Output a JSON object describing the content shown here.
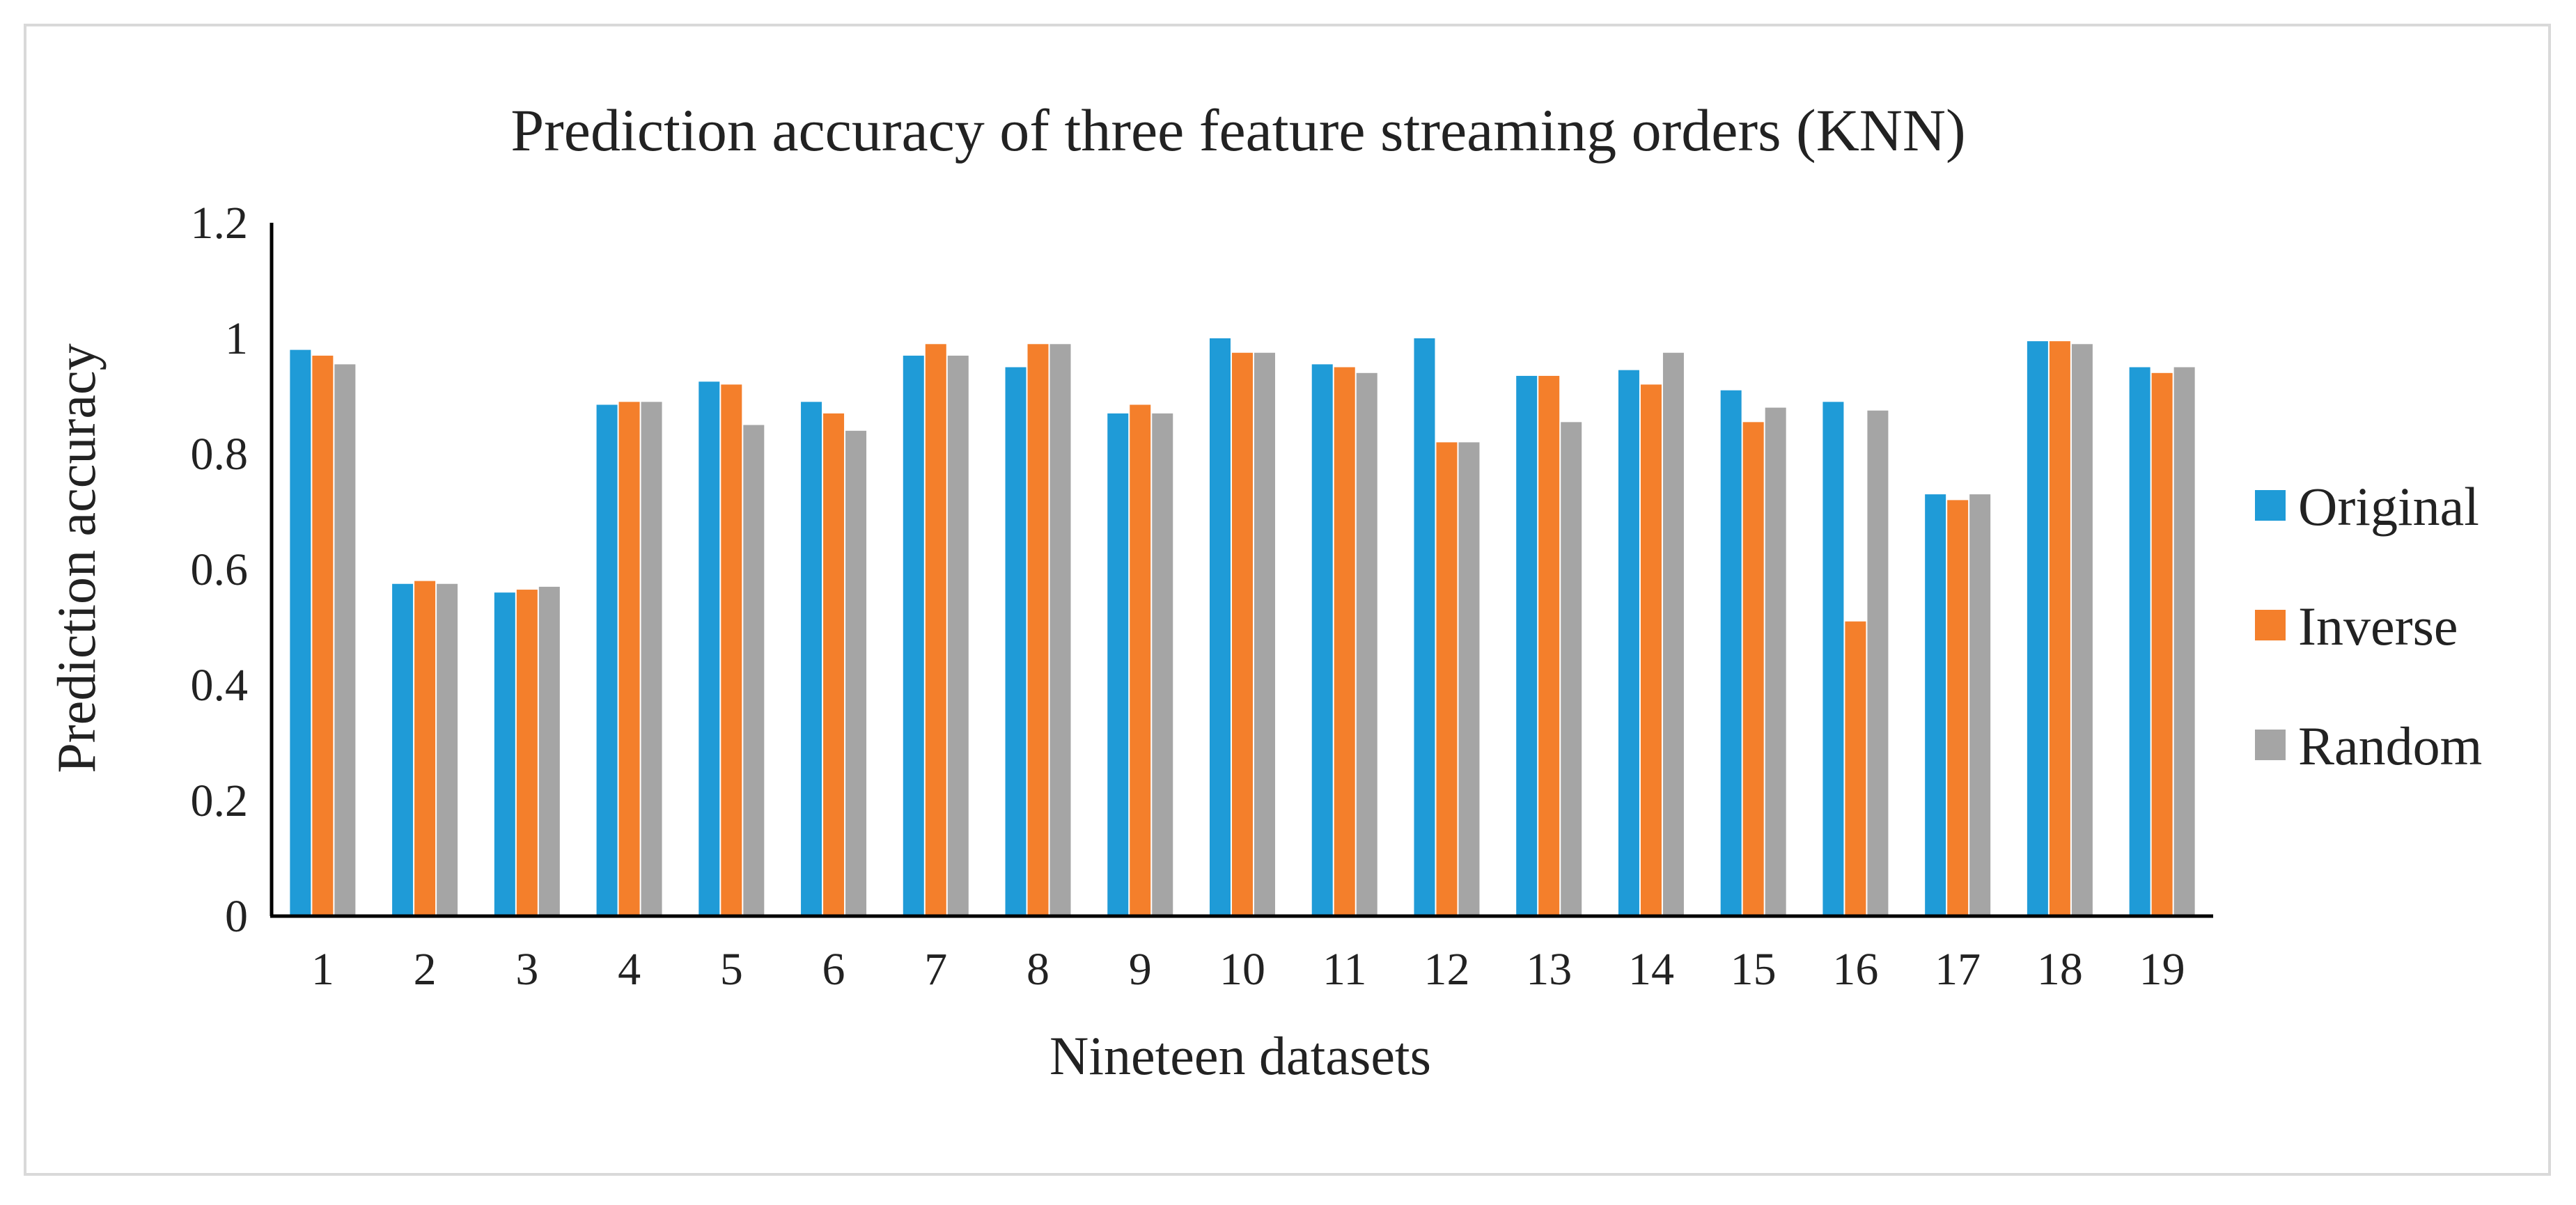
{
  "chart_data": {
    "type": "bar",
    "title": "Prediction accuracy of three feature streaming orders (KNN)",
    "xlabel": "Nineteen datasets",
    "ylabel": "Prediction accuracy",
    "ylim": [
      0,
      1.2
    ],
    "yticks": [
      "0",
      "0.2",
      "0.4",
      "0.6",
      "0.8",
      "1",
      "1.2"
    ],
    "ytick_values": [
      0,
      0.2,
      0.4,
      0.6,
      0.8,
      1.0,
      1.2
    ],
    "grid": false,
    "legend_position": "right",
    "categories": [
      "1",
      "2",
      "3",
      "4",
      "5",
      "6",
      "7",
      "8",
      "9",
      "10",
      "11",
      "12",
      "13",
      "14",
      "15",
      "16",
      "17",
      "18",
      "19"
    ],
    "series": [
      {
        "name": "Original",
        "color": "#1f9bd7",
        "values": [
          0.98,
          0.575,
          0.56,
          0.885,
          0.925,
          0.89,
          0.97,
          0.95,
          0.87,
          1.0,
          0.955,
          1.0,
          0.935,
          0.945,
          0.91,
          0.89,
          0.73,
          0.995,
          0.95
        ]
      },
      {
        "name": "Inverse",
        "color": "#f47f2b",
        "values": [
          0.97,
          0.58,
          0.565,
          0.89,
          0.92,
          0.87,
          0.99,
          0.99,
          0.885,
          0.975,
          0.95,
          0.82,
          0.935,
          0.92,
          0.855,
          0.51,
          0.72,
          0.995,
          0.94
        ]
      },
      {
        "name": "Random",
        "color": "#a5a5a5",
        "values": [
          0.955,
          0.575,
          0.57,
          0.89,
          0.85,
          0.84,
          0.97,
          0.99,
          0.87,
          0.975,
          0.94,
          0.82,
          0.855,
          0.975,
          0.88,
          0.875,
          0.73,
          0.99,
          0.95
        ]
      }
    ]
  }
}
